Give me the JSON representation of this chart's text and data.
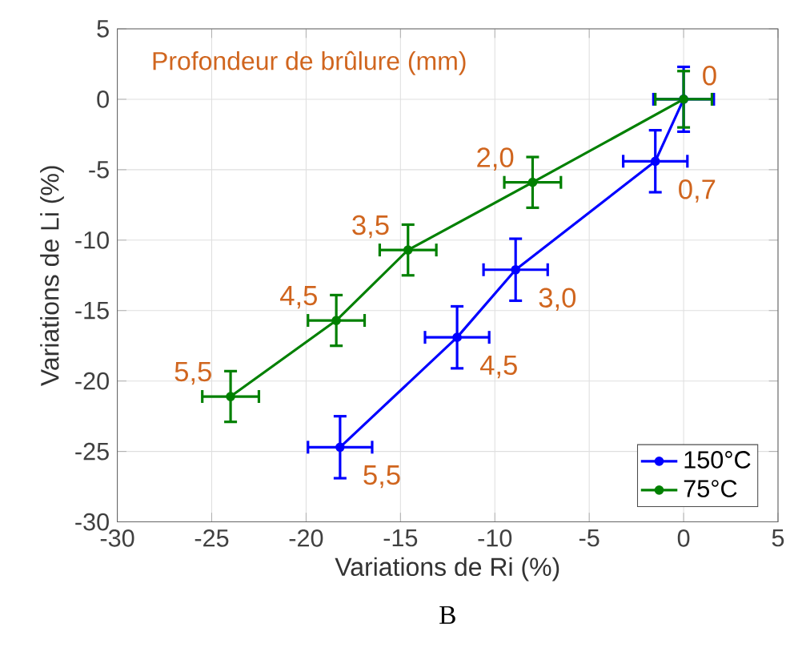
{
  "chart_data": {
    "type": "line",
    "xlabel": "Variations de Ri (%)",
    "ylabel": "Variations de Li (%)",
    "xlim": [
      -30,
      5
    ],
    "xticks": [
      -30,
      -25,
      -20,
      -15,
      -10,
      -5,
      0,
      5
    ],
    "ylim": [
      -30,
      5
    ],
    "yticks": [
      -30,
      -25,
      -20,
      -15,
      -10,
      -5,
      0,
      5
    ],
    "grid": true,
    "legend": "bottom right",
    "marker": "circle",
    "line_style": "solid",
    "series": [
      {
        "name": "150°C",
        "color": "#0000ff",
        "x": [
          0,
          -1.5,
          -8.9,
          -12.0,
          -18.2
        ],
        "values": [
          0,
          -4.4,
          -12.1,
          -16.9,
          -24.7
        ],
        "xerrors": [
          1.6,
          1.7,
          1.7,
          1.7,
          1.7
        ],
        "errors": [
          2.3,
          2.2,
          2.2,
          2.2,
          2.2
        ]
      },
      {
        "name": "75°C",
        "color": "#008000",
        "x": [
          0,
          -8.0,
          -14.6,
          -18.4,
          -24.0
        ],
        "values": [
          0,
          -5.9,
          -10.7,
          -15.7,
          -21.1
        ],
        "xerrors": [
          1.5,
          1.5,
          1.5,
          1.5,
          1.5
        ],
        "errors": [
          2.0,
          1.8,
          1.8,
          1.8,
          1.8
        ]
      }
    ],
    "annotations": [
      "Profondeur de brûlure (mm)",
      "B",
      {
        "text": "0",
        "x": 0,
        "y": 0
      },
      {
        "text": "0,7",
        "x": -1.5,
        "y": -4.4
      },
      {
        "text": "3,0",
        "x": -8.9,
        "y": -12.1
      },
      {
        "text": "4,5",
        "x": -12.0,
        "y": -16.9
      },
      {
        "text": "5,5",
        "x": -18.2,
        "y": -24.7
      },
      {
        "text": "2,0",
        "x": -8.0,
        "y": -5.9
      },
      {
        "text": "3,5",
        "x": -14.6,
        "y": -10.7
      },
      {
        "text": "4,5",
        "x": -18.4,
        "y": -15.7
      },
      {
        "text": "5,5",
        "x": -24.0,
        "y": -21.1
      }
    ]
  }
}
